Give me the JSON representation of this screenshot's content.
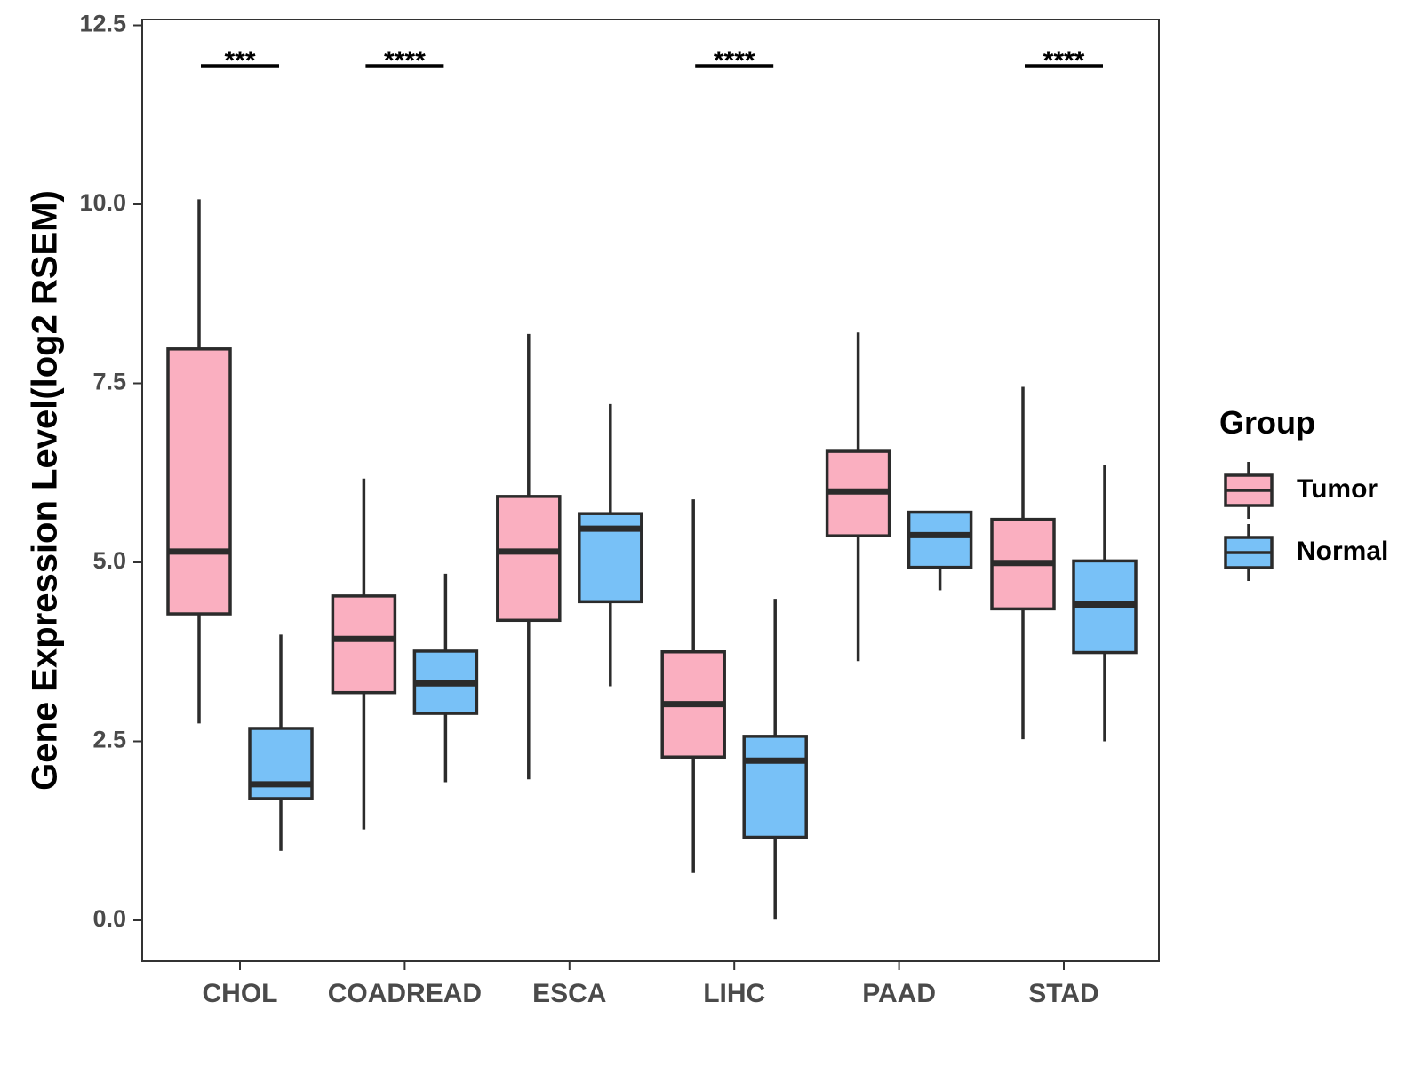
{
  "chart_data": {
    "type": "boxplot",
    "title": "",
    "xlabel": "",
    "ylabel": "Gene Expression Level(log2 RSEM)",
    "ylim": [
      -0.6,
      12.6
    ],
    "yticks": [
      "0.0",
      "2.5",
      "5.0",
      "7.5",
      "10.0",
      "12.5"
    ],
    "ytick_values": [
      0,
      2.5,
      5,
      7.5,
      10,
      12.5
    ],
    "categories": [
      "CHOL",
      "COADREAD",
      "ESCA",
      "LIHC",
      "PAAD",
      "STAD"
    ],
    "legend": {
      "title": "Group",
      "position": "right"
    },
    "series": [
      {
        "name": "Tumor",
        "color": "#FAAFC0",
        "boxes": [
          {
            "min": 2.75,
            "q1": 4.28,
            "median": 5.15,
            "q3": 7.98,
            "max": 10.07
          },
          {
            "min": 1.27,
            "q1": 3.18,
            "median": 3.93,
            "q3": 4.53,
            "max": 6.17
          },
          {
            "min": 1.97,
            "q1": 4.19,
            "median": 5.15,
            "q3": 5.92,
            "max": 8.19
          },
          {
            "min": 0.66,
            "q1": 2.28,
            "median": 3.02,
            "q3": 3.75,
            "max": 5.88
          },
          {
            "min": 3.62,
            "q1": 5.37,
            "median": 5.99,
            "q3": 6.55,
            "max": 8.21
          },
          {
            "min": 2.53,
            "q1": 4.35,
            "median": 4.99,
            "q3": 5.6,
            "max": 7.45
          }
        ]
      },
      {
        "name": "Normal",
        "color": "#78C1F7",
        "boxes": [
          {
            "min": 0.97,
            "q1": 1.7,
            "median": 1.9,
            "q3": 2.68,
            "max": 3.99
          },
          {
            "min": 1.93,
            "q1": 2.89,
            "median": 3.31,
            "q3": 3.76,
            "max": 4.84
          },
          {
            "min": 3.27,
            "q1": 4.45,
            "median": 5.47,
            "q3": 5.68,
            "max": 7.21
          },
          {
            "min": 0.01,
            "q1": 1.16,
            "median": 2.23,
            "q3": 2.57,
            "max": 4.49
          },
          {
            "min": 4.61,
            "q1": 4.93,
            "median": 5.38,
            "q3": 5.7,
            "max": 5.7
          },
          {
            "min": 2.5,
            "q1": 3.74,
            "median": 4.41,
            "q3": 5.02,
            "max": 6.36
          }
        ]
      }
    ],
    "significance": [
      "***",
      "****",
      "",
      "****",
      "",
      "****"
    ]
  }
}
